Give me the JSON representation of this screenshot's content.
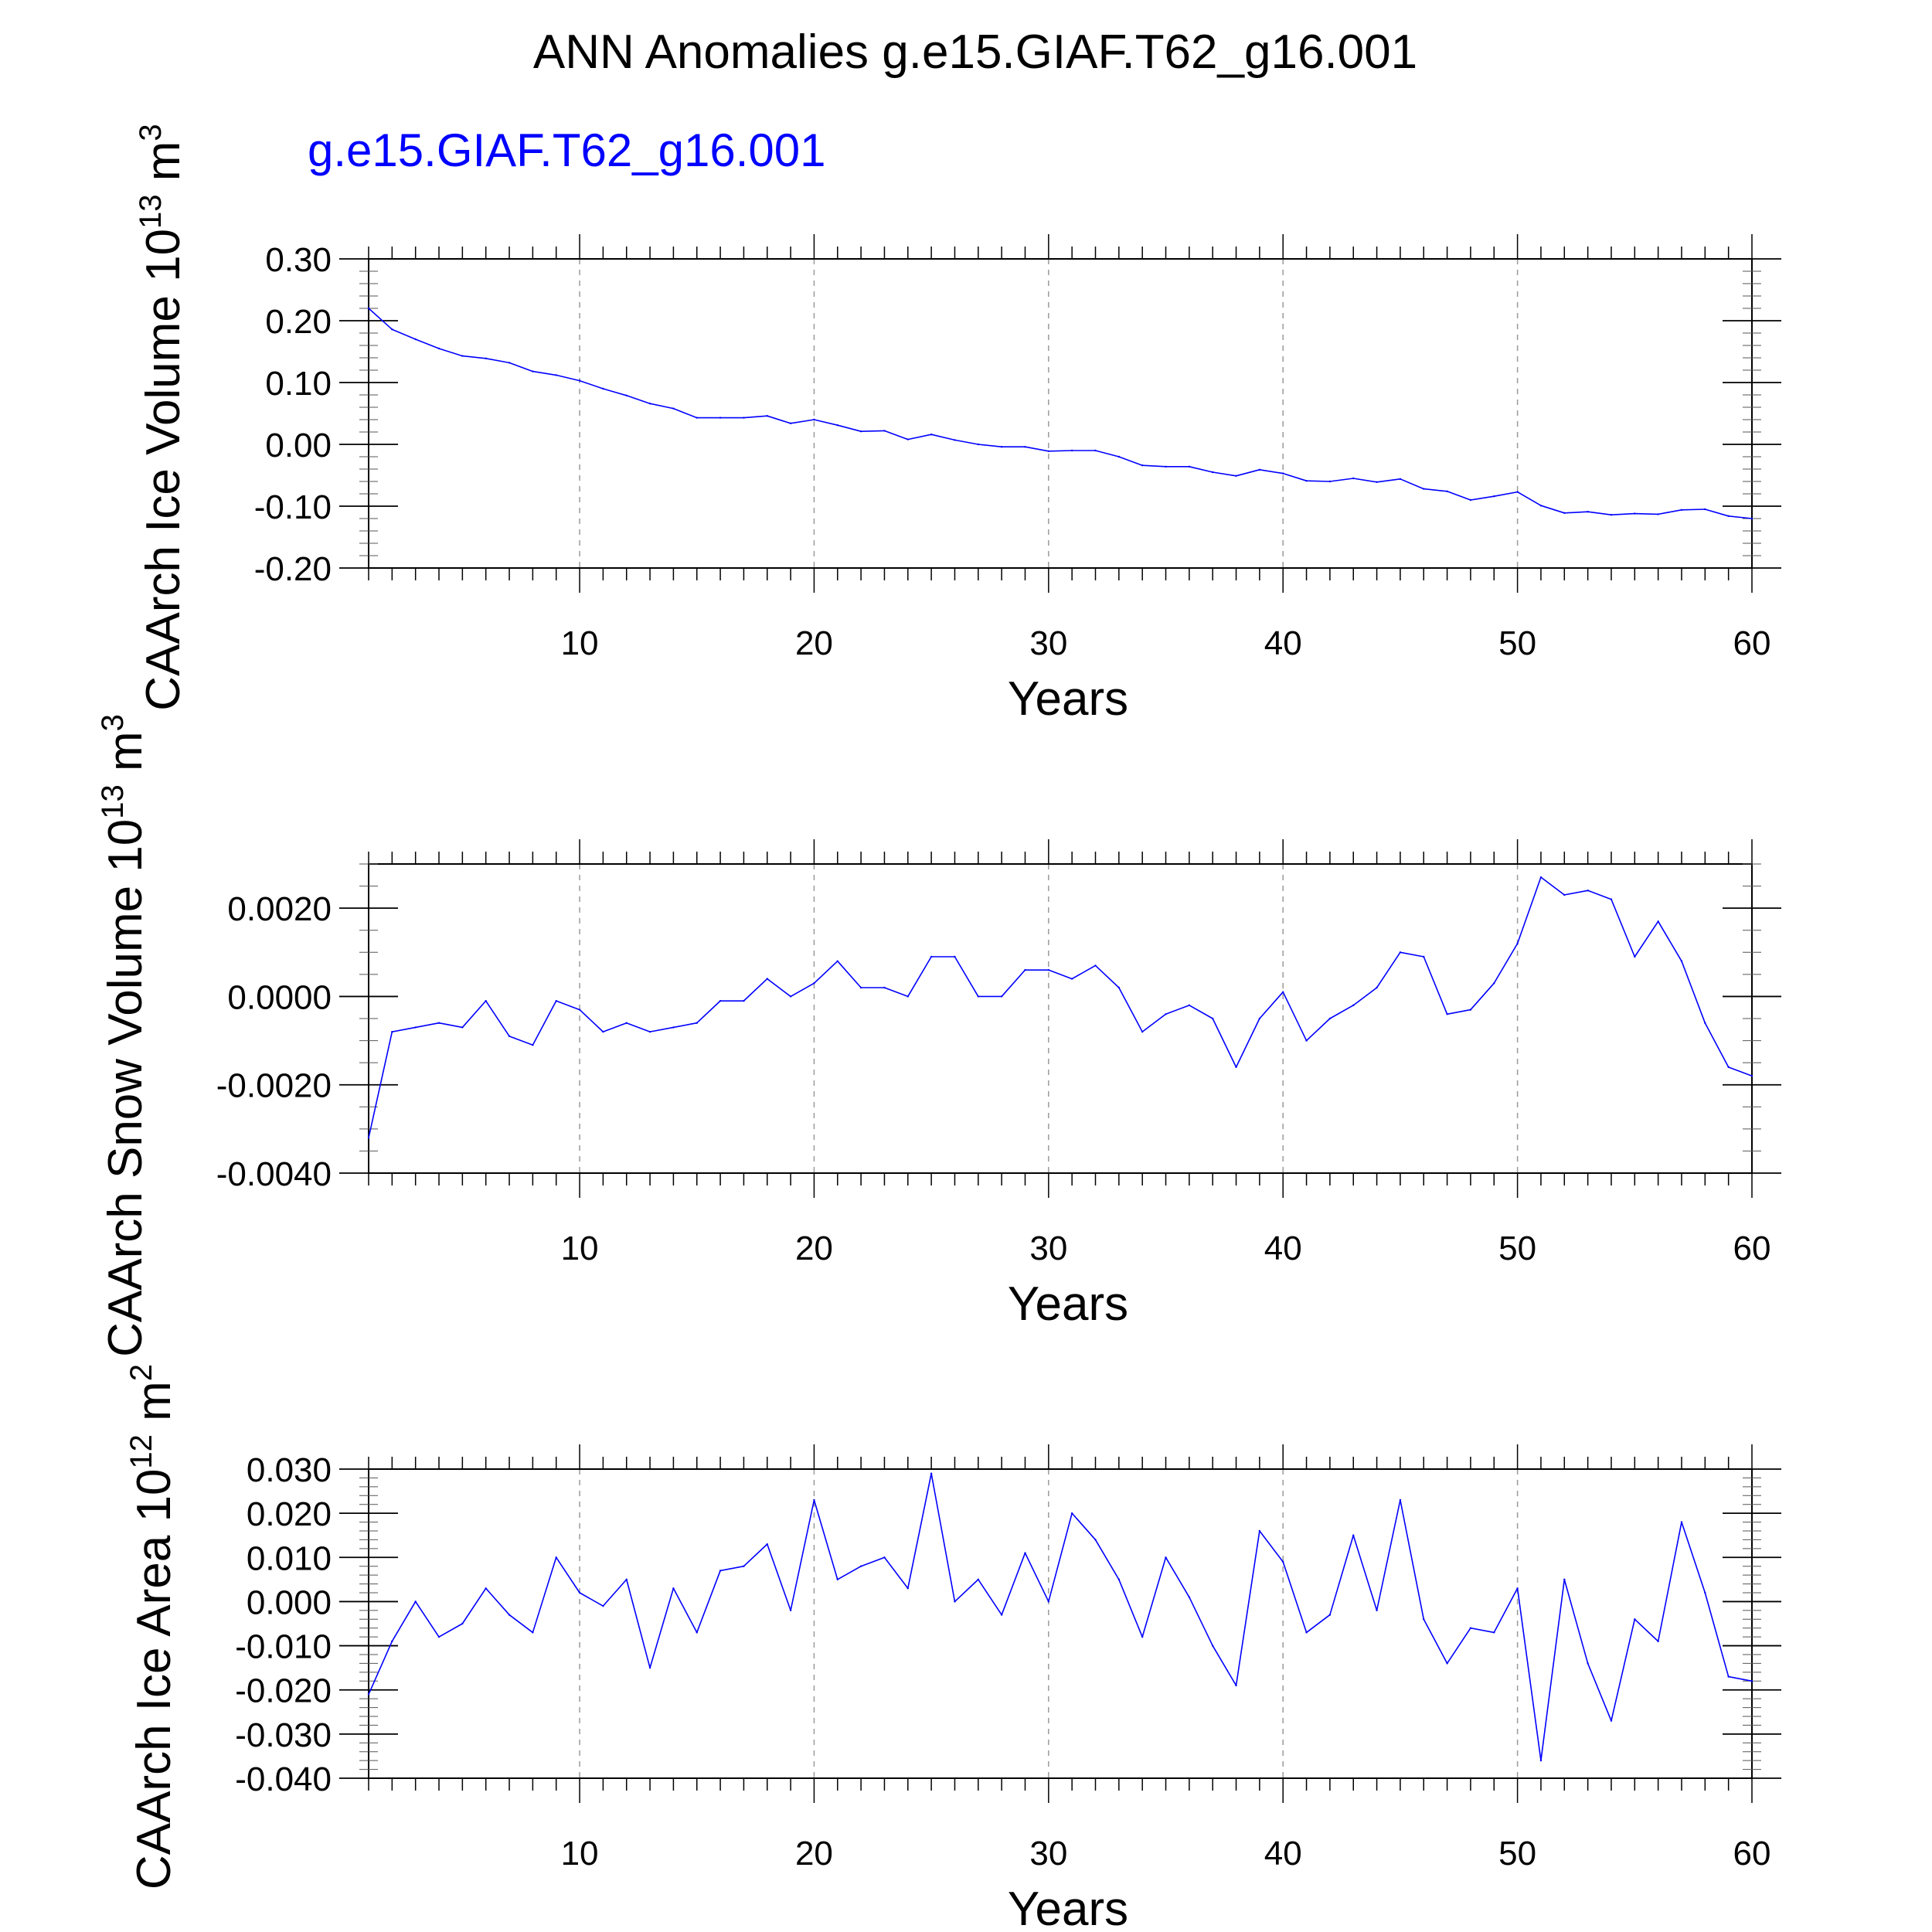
{
  "title": "ANN Anomalies g.e15.GIAF.T62_g16.001",
  "case_label": "g.e15.GIAF.T62_g16.001",
  "colors": {
    "series": "#0000ff",
    "case_label": "#0000ff",
    "axis": "#000000",
    "grid": "#9a9a9a"
  },
  "panels": [
    {
      "ylabel_main": "CAArch Ice Volume 10",
      "ylabel_exp1": "13",
      "ylabel_unit": " m",
      "ylabel_exp2": "3",
      "xlabel": "Years"
    },
    {
      "ylabel_main": "CAArch Snow Volume 10",
      "ylabel_exp1": "13",
      "ylabel_unit": " m",
      "ylabel_exp2": "3",
      "xlabel": "Years"
    },
    {
      "ylabel_main": "CAArch Ice Area 10",
      "ylabel_exp1": "12",
      "ylabel_unit": " m",
      "ylabel_exp2": "2",
      "xlabel": "Years"
    }
  ],
  "chart_data": [
    {
      "type": "line",
      "title": "CAArch Ice Volume",
      "xlabel": "Years",
      "ylabel": "CAArch Ice Volume 10^13 m^3",
      "xlim": [
        1,
        60
      ],
      "ylim": [
        -0.2,
        0.3
      ],
      "grid": "vertical dashed at x ticks",
      "x_ticks": [
        10,
        20,
        30,
        40,
        50,
        60
      ],
      "x_tick_labels": [
        "10",
        "20",
        "30",
        "40",
        "50",
        "60"
      ],
      "y_ticks": [
        0.3,
        0.2,
        0.1,
        0.0,
        -0.1,
        -0.2
      ],
      "y_tick_labels": [
        "0.30",
        "0.20",
        "0.10",
        "0.00",
        "-0.10",
        "-0.20"
      ],
      "y_minor_step": 0.02,
      "series": [
        {
          "name": "g.e15.GIAF.T62_g16.001",
          "values": [
            0.22,
            0.186,
            0.17,
            0.155,
            0.143,
            0.139,
            0.132,
            0.118,
            0.112,
            0.103,
            0.09,
            0.079,
            0.066,
            0.058,
            0.043,
            0.043,
            0.043,
            0.046,
            0.034,
            0.04,
            0.031,
            0.021,
            0.022,
            0.008,
            0.016,
            0.007,
            0.0,
            -0.004,
            -0.004,
            -0.011,
            -0.01,
            -0.01,
            -0.02,
            -0.034,
            -0.036,
            -0.036,
            -0.045,
            -0.051,
            -0.041,
            -0.047,
            -0.059,
            -0.06,
            -0.055,
            -0.061,
            -0.056,
            -0.072,
            -0.076,
            -0.09,
            -0.084,
            -0.077,
            -0.099,
            -0.111,
            -0.109,
            -0.114,
            -0.112,
            -0.113,
            -0.106,
            -0.105,
            -0.116,
            -0.12
          ]
        }
      ]
    },
    {
      "type": "line",
      "title": "CAArch Snow Volume",
      "xlabel": "Years",
      "ylabel": "CAArch Snow Volume 10^13 m^3",
      "xlim": [
        1,
        60
      ],
      "ylim": [
        -0.004,
        0.003
      ],
      "grid": "vertical dashed at x ticks",
      "x_ticks": [
        10,
        20,
        30,
        40,
        50,
        60
      ],
      "x_tick_labels": [
        "10",
        "20",
        "30",
        "40",
        "50",
        "60"
      ],
      "y_ticks": [
        0.002,
        0.0,
        -0.002,
        -0.004
      ],
      "y_tick_labels": [
        "0.0020",
        "0.0000",
        "-0.0020",
        "-0.0040"
      ],
      "y_minor_step": 0.0005,
      "series": [
        {
          "name": "g.e15.GIAF.T62_g16.001",
          "values": [
            -0.0032,
            -0.0008,
            -0.0007,
            -0.0006,
            -0.0007,
            -0.0001,
            -0.0009,
            -0.0011,
            -0.0001,
            -0.0003,
            -0.0008,
            -0.0006,
            -0.0008,
            -0.0007,
            -0.0006,
            -0.0001,
            -0.0001,
            0.0004,
            0.0,
            0.0003,
            0.0008,
            0.0002,
            0.0002,
            0.0,
            0.0009,
            0.0009,
            0.0,
            0.0,
            0.0006,
            0.0006,
            0.0004,
            0.0007,
            0.0002,
            -0.0008,
            -0.0004,
            -0.0002,
            -0.0005,
            -0.0016,
            -0.0005,
            0.0001,
            -0.001,
            -0.0005,
            -0.0002,
            0.0002,
            0.001,
            0.0009,
            -0.0004,
            -0.0003,
            0.0003,
            0.0012,
            0.0027,
            0.0023,
            0.0024,
            0.0022,
            0.0009,
            0.0017,
            0.0008,
            -0.0006,
            -0.0016,
            -0.0018
          ]
        }
      ]
    },
    {
      "type": "line",
      "title": "CAArch Ice Area",
      "xlabel": "Years",
      "ylabel": "CAArch Ice Area 10^12 m^2",
      "xlim": [
        1,
        60
      ],
      "ylim": [
        -0.04,
        0.03
      ],
      "grid": "vertical dashed at x ticks",
      "x_ticks": [
        10,
        20,
        30,
        40,
        50,
        60
      ],
      "x_tick_labels": [
        "10",
        "20",
        "30",
        "40",
        "50",
        "60"
      ],
      "y_ticks": [
        0.03,
        0.02,
        0.01,
        0.0,
        -0.01,
        -0.02,
        -0.03,
        -0.04
      ],
      "y_tick_labels": [
        "0.030",
        "0.020",
        "0.010",
        "0.000",
        "-0.010",
        "-0.020",
        "-0.030",
        "-0.040"
      ],
      "y_minor_step": 0.002,
      "series": [
        {
          "name": "g.e15.GIAF.T62_g16.001",
          "values": [
            -0.021,
            -0.009,
            0.0,
            -0.008,
            -0.005,
            0.003,
            -0.003,
            -0.007,
            0.01,
            0.002,
            -0.001,
            0.005,
            -0.015,
            0.003,
            -0.007,
            0.007,
            0.008,
            0.013,
            -0.002,
            0.023,
            0.005,
            0.008,
            0.01,
            0.003,
            0.029,
            0.0,
            0.005,
            -0.003,
            0.011,
            0.0,
            0.02,
            0.014,
            0.005,
            -0.008,
            0.01,
            0.001,
            -0.01,
            -0.019,
            0.016,
            0.009,
            -0.007,
            -0.003,
            0.015,
            -0.002,
            0.023,
            -0.004,
            -0.014,
            -0.006,
            -0.007,
            0.003,
            -0.036,
            0.005,
            -0.014,
            -0.027,
            -0.004,
            -0.009,
            0.018,
            0.002,
            -0.017,
            -0.018
          ]
        }
      ]
    }
  ]
}
